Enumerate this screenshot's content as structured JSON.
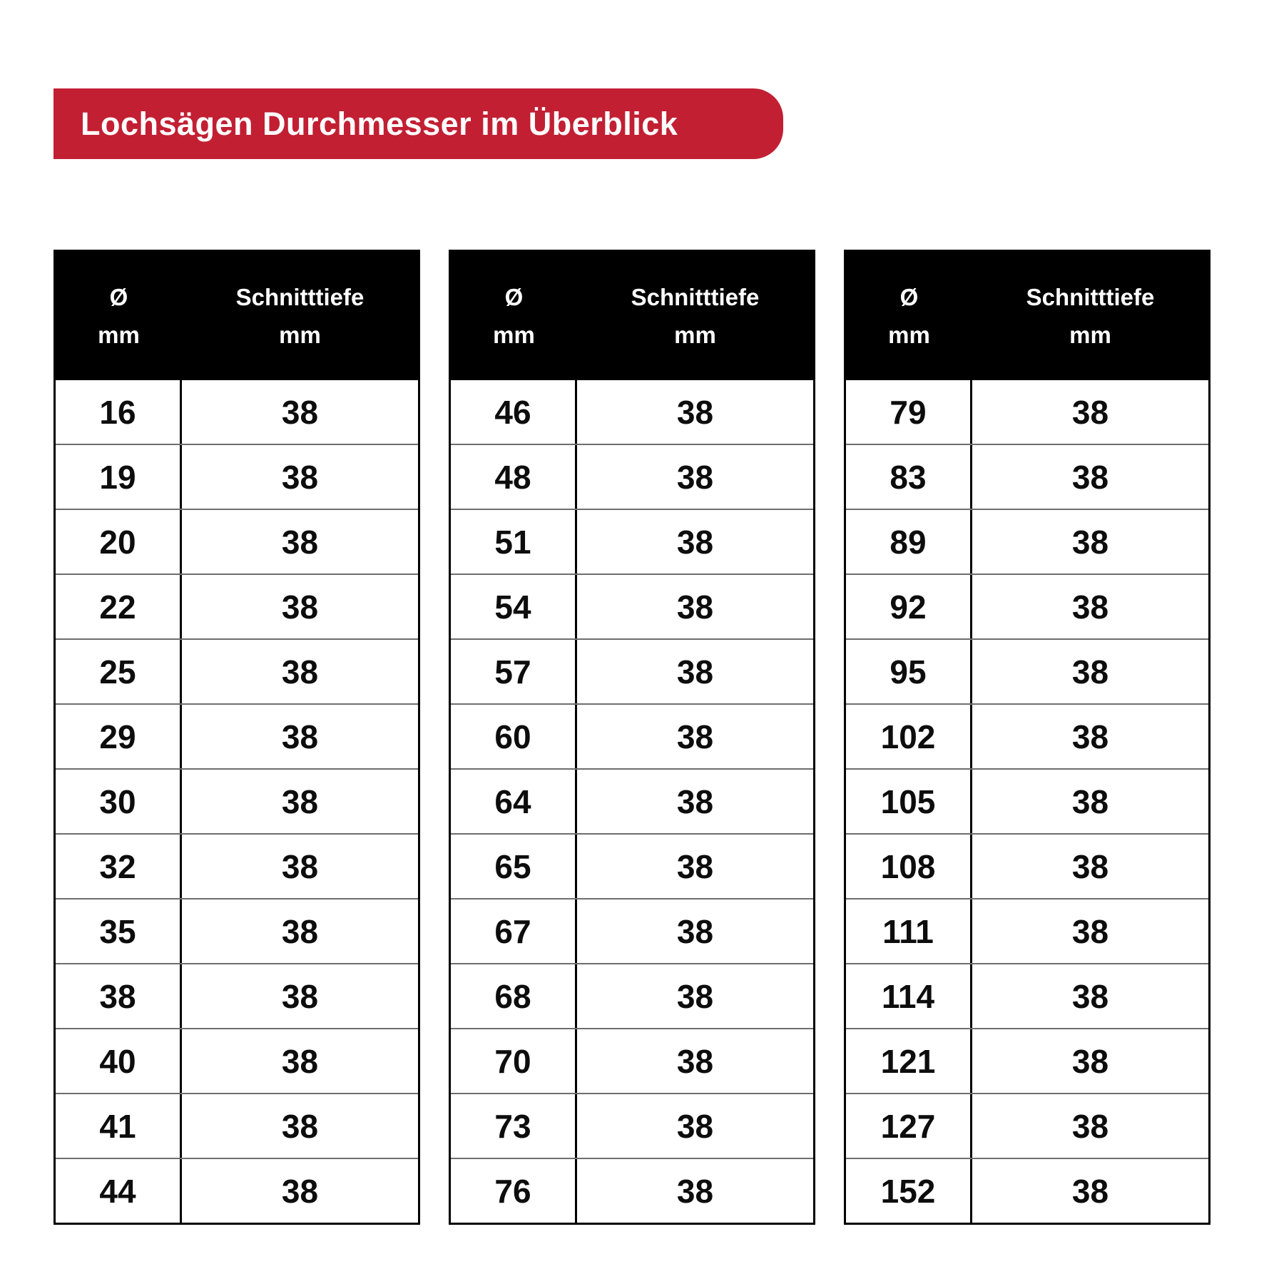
{
  "banner": {
    "title": "Lochsägen Durchmesser im Überblick"
  },
  "header": {
    "diameter_symbol": "Ø",
    "diameter_unit": "mm",
    "depth_label": "Schnitttiefe",
    "depth_unit": "mm"
  },
  "colors": {
    "banner_red": "#c21f33",
    "header_black": "#000000"
  },
  "chart_data": {
    "type": "table",
    "title": "Lochsägen Durchmesser im Überblick",
    "columns": [
      "Ø mm",
      "Schnitttiefe mm"
    ],
    "tables": [
      {
        "rows": [
          [
            "16",
            "38"
          ],
          [
            "19",
            "38"
          ],
          [
            "20",
            "38"
          ],
          [
            "22",
            "38"
          ],
          [
            "25",
            "38"
          ],
          [
            "29",
            "38"
          ],
          [
            "30",
            "38"
          ],
          [
            "32",
            "38"
          ],
          [
            "35",
            "38"
          ],
          [
            "38",
            "38"
          ],
          [
            "40",
            "38"
          ],
          [
            "41",
            "38"
          ],
          [
            "44",
            "38"
          ]
        ]
      },
      {
        "rows": [
          [
            "46",
            "38"
          ],
          [
            "48",
            "38"
          ],
          [
            "51",
            "38"
          ],
          [
            "54",
            "38"
          ],
          [
            "57",
            "38"
          ],
          [
            "60",
            "38"
          ],
          [
            "64",
            "38"
          ],
          [
            "65",
            "38"
          ],
          [
            "67",
            "38"
          ],
          [
            "68",
            "38"
          ],
          [
            "70",
            "38"
          ],
          [
            "73",
            "38"
          ],
          [
            "76",
            "38"
          ]
        ]
      },
      {
        "rows": [
          [
            "79",
            "38"
          ],
          [
            "83",
            "38"
          ],
          [
            "89",
            "38"
          ],
          [
            "92",
            "38"
          ],
          [
            "95",
            "38"
          ],
          [
            "102",
            "38"
          ],
          [
            "105",
            "38"
          ],
          [
            "108",
            "38"
          ],
          [
            "111",
            "38"
          ],
          [
            "114",
            "38"
          ],
          [
            "121",
            "38"
          ],
          [
            "127",
            "38"
          ],
          [
            "152",
            "38"
          ]
        ]
      }
    ]
  }
}
